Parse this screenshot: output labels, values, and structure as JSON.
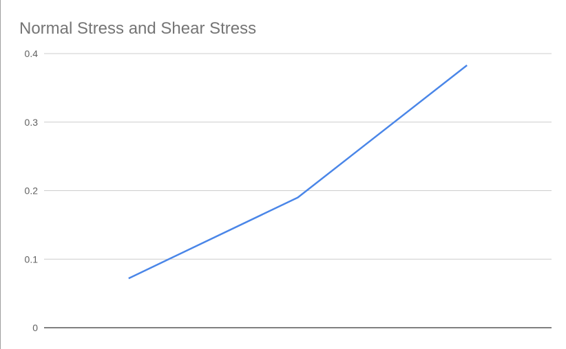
{
  "chart_data": {
    "type": "line",
    "title": "Normal Stress and Shear Stress",
    "xlabel": "",
    "ylabel": "",
    "x": [
      1,
      2,
      3
    ],
    "series": [
      {
        "values": [
          0.072,
          0.19,
          0.383
        ]
      }
    ],
    "ylim": [
      0,
      0.4
    ],
    "yticks": [
      {
        "value": 0,
        "label": "0"
      },
      {
        "value": 0.1,
        "label": "0.1"
      },
      {
        "value": 0.2,
        "label": "0.2"
      },
      {
        "value": 0.3,
        "label": "0.3"
      },
      {
        "value": 0.4,
        "label": "0.4"
      }
    ],
    "grid": true,
    "legend": "none",
    "colors": {
      "line": "#4a86e8",
      "grid": "#cccccc",
      "baseline": "#333333"
    }
  }
}
